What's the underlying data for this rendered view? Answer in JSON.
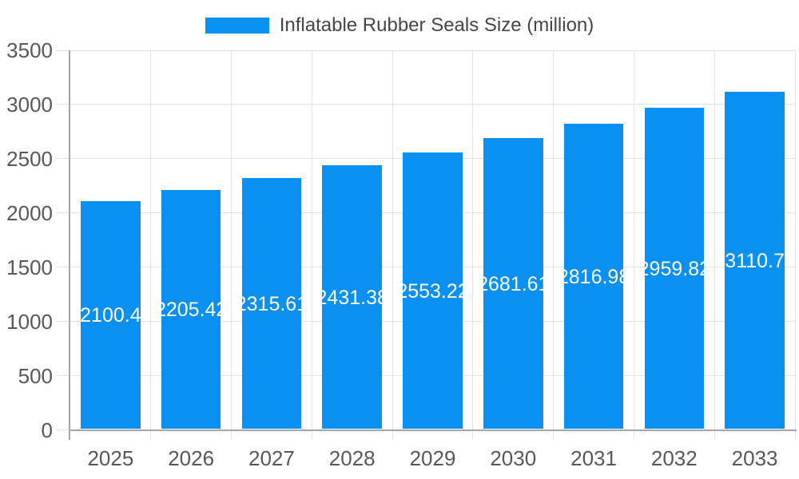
{
  "chart_data": {
    "type": "bar",
    "title": "Inflatable Rubber Seals Size (million)",
    "categories": [
      "2025",
      "2026",
      "2027",
      "2028",
      "2029",
      "2030",
      "2031",
      "2032",
      "2033"
    ],
    "values": [
      2100.4,
      2205.42,
      2315.61,
      2431.38,
      2553.22,
      2681.61,
      2816.98,
      2959.82,
      3110.7
    ],
    "value_labels": [
      "2100.4",
      "2205.42",
      "2315.61",
      "2431.38",
      "2553.22",
      "2681.61",
      "2816.98",
      "2959.82",
      "3110.7"
    ],
    "xlabel": "",
    "ylabel": "",
    "ylim": [
      0,
      3500
    ],
    "ytick_step": 500,
    "ytick_labels": [
      "0",
      "500",
      "1000",
      "1500",
      "2000",
      "2500",
      "3000",
      "3500"
    ],
    "grid": true,
    "legend_position": "top",
    "value_label_position": "inside-center",
    "colors": {
      "bar": "#0A90F0",
      "bar_value_text": "#FFFFFF",
      "gridline": "#E3E3E3",
      "axis_border": "#A6A6A6",
      "axis_text": "#58585B",
      "legend_text": "#464646",
      "background": "#FFFFFF"
    }
  }
}
